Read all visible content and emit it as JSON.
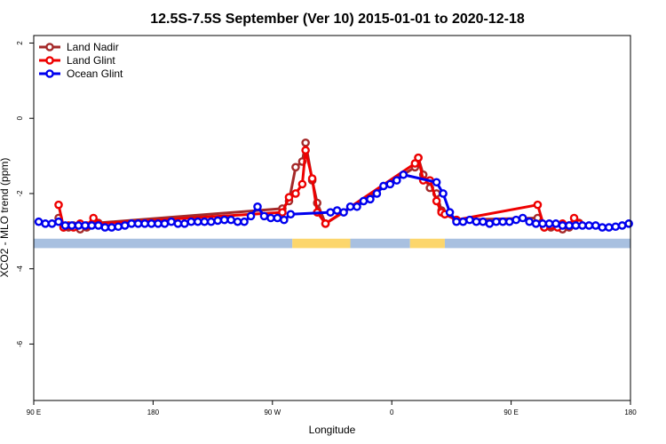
{
  "chart_data": {
    "type": "line",
    "title": "12.5S-7.5S September (Ver 10)   2015-01-01 to 2020-12-18",
    "xlabel": "Longitude",
    "ylabel": "XCO2 - MLO trend (ppm)",
    "xlim": [
      90,
      450
    ],
    "ylim": [
      -7.5,
      2.2
    ],
    "x_ticks": [
      {
        "value": 90,
        "label": "90 E"
      },
      {
        "value": 162,
        "label": "180"
      },
      {
        "value": 234,
        "label": "90 W"
      },
      {
        "value": 306,
        "label": "0"
      },
      {
        "value": 378,
        "label": "90 E"
      },
      {
        "value": 450,
        "label": "180"
      }
    ],
    "y_ticks": [
      {
        "value": 2,
        "label": "2"
      },
      {
        "value": 0,
        "label": "0"
      },
      {
        "value": -2,
        "label": "-2"
      },
      {
        "value": -4,
        "label": "-4"
      },
      {
        "value": -6,
        "label": "-6"
      }
    ],
    "legend_position": "top-left",
    "series": [
      {
        "name": "Land Nadir",
        "color": "#a52a2a",
        "x": [
          105,
          108,
          111,
          114,
          118,
          122,
          126,
          129,
          240,
          244,
          248,
          252,
          254,
          258,
          261,
          266,
          320,
          322,
          325,
          329,
          333,
          336,
          338,
          345,
          394,
          398,
          402,
          406,
          409,
          413,
          416,
          419
        ],
        "y": [
          -2.65,
          -2.9,
          -2.9,
          -2.85,
          -2.95,
          -2.9,
          -2.8,
          -2.78,
          -2.4,
          -2.2,
          -1.3,
          -1.15,
          -0.65,
          -1.65,
          -2.25,
          -2.8,
          -1.3,
          -1.05,
          -1.5,
          -1.85,
          -2.0,
          -2.45,
          -2.55,
          -2.7,
          -2.65,
          -2.9,
          -2.9,
          -2.85,
          -2.95,
          -2.9,
          -2.8,
          -2.78
        ]
      },
      {
        "name": "Land Glint",
        "color": "#ee0000",
        "x": [
          105,
          108,
          111,
          114,
          118,
          122,
          126,
          129,
          240,
          244,
          248,
          252,
          254,
          258,
          261,
          266,
          320,
          322,
          325,
          329,
          333,
          336,
          338,
          345,
          394,
          398,
          402,
          406,
          409,
          413,
          416,
          419
        ],
        "y": [
          -2.3,
          -2.9,
          -2.85,
          -2.9,
          -2.8,
          -2.85,
          -2.65,
          -2.8,
          -2.5,
          -2.1,
          -2.0,
          -1.75,
          -0.85,
          -1.6,
          -2.5,
          -2.8,
          -1.2,
          -1.05,
          -1.65,
          -1.65,
          -2.2,
          -2.5,
          -2.55,
          -2.7,
          -2.3,
          -2.9,
          -2.85,
          -2.9,
          -2.8,
          -2.85,
          -2.65,
          -2.8
        ]
      },
      {
        "name": "Ocean Glint",
        "color": "#0000ee",
        "x": [
          93,
          97,
          101,
          105,
          109,
          113,
          117,
          121,
          125,
          129,
          133,
          137,
          141,
          145,
          149,
          153,
          157,
          161,
          165,
          169,
          173,
          177,
          181,
          185,
          189,
          193,
          197,
          201,
          205,
          209,
          213,
          217,
          221,
          225,
          229,
          233,
          237,
          241,
          245,
          269,
          273,
          277,
          281,
          285,
          289,
          293,
          297,
          301,
          305,
          309,
          313,
          333,
          337,
          341,
          345,
          349,
          353,
          357,
          361,
          365,
          369,
          373,
          377,
          381,
          385,
          389,
          393,
          397,
          401,
          405,
          409,
          413,
          417,
          421,
          425,
          429,
          433,
          437,
          441,
          445,
          449
        ],
        "y": [
          -2.75,
          -2.8,
          -2.8,
          -2.75,
          -2.85,
          -2.85,
          -2.85,
          -2.85,
          -2.85,
          -2.85,
          -2.9,
          -2.9,
          -2.88,
          -2.85,
          -2.8,
          -2.8,
          -2.8,
          -2.8,
          -2.8,
          -2.8,
          -2.75,
          -2.8,
          -2.8,
          -2.75,
          -2.75,
          -2.75,
          -2.75,
          -2.72,
          -2.7,
          -2.7,
          -2.75,
          -2.75,
          -2.6,
          -2.35,
          -2.6,
          -2.65,
          -2.65,
          -2.7,
          -2.55,
          -2.5,
          -2.45,
          -2.5,
          -2.35,
          -2.35,
          -2.2,
          -2.15,
          -2.0,
          -1.8,
          -1.75,
          -1.65,
          -1.5,
          -1.7,
          -2.0,
          -2.5,
          -2.75,
          -2.75,
          -2.7,
          -2.75,
          -2.75,
          -2.8,
          -2.75,
          -2.75,
          -2.75,
          -2.7,
          -2.65,
          -2.75,
          -2.8,
          -2.8,
          -2.8,
          -2.8,
          -2.85,
          -2.85,
          -2.85,
          -2.85,
          -2.85,
          -2.85,
          -2.9,
          -2.9,
          -2.88,
          -2.85,
          -2.8
        ]
      }
    ],
    "background_bands": [
      {
        "y_from": -3.2,
        "y_to": -3.45,
        "segments": [
          {
            "from": 90,
            "to": 246,
            "color": "#a8c0e0"
          },
          {
            "from": 246,
            "to": 281,
            "color": "#fcd66c"
          },
          {
            "from": 281,
            "to": 317,
            "color": "#a8c0e0"
          },
          {
            "from": 317,
            "to": 338,
            "color": "#fcd66c"
          },
          {
            "from": 338,
            "to": 450,
            "color": "#a8c0e0"
          }
        ]
      }
    ]
  }
}
